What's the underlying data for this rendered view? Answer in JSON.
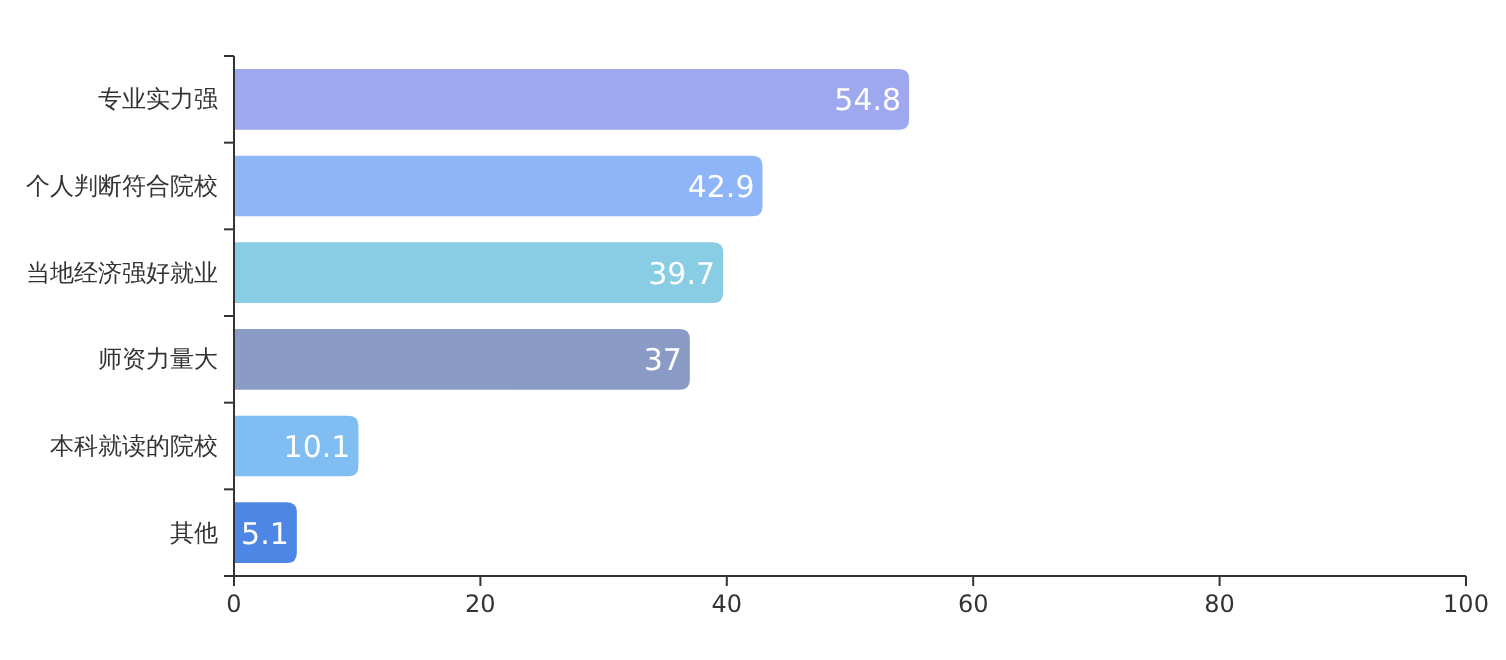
{
  "chart_data": {
    "type": "bar",
    "orientation": "horizontal",
    "categories": [
      "专业实力强",
      "个人判断符合院校",
      "当地经济强好就业",
      "师资力量大",
      "本科就读的院校",
      "其他"
    ],
    "values": [
      54.8,
      42.9,
      39.7,
      37,
      10.1,
      5.1
    ],
    "colors": [
      "#9ea8ef",
      "#8fb5f9",
      "#89cde4",
      "#8a9bc6",
      "#80bdf2",
      "#4e86e6"
    ],
    "xlim": [
      0,
      100
    ],
    "xticks": [
      0,
      20,
      40,
      60,
      80,
      100
    ],
    "data_labels": true
  }
}
